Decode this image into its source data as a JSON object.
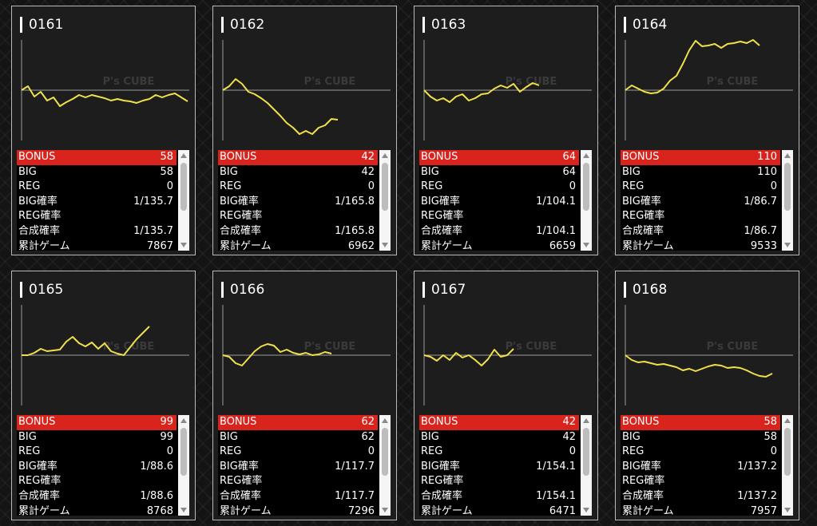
{
  "graph_style": {
    "line_color": "#f0e04a",
    "axis_color": "#9a9a9a",
    "watermark": "P's CUBE"
  },
  "label_keys": [
    "BONUS",
    "BIG",
    "REG",
    "BIG確率",
    "REG確率",
    "合成確率",
    "累計ゲーム"
  ],
  "machines": [
    {
      "number": "0161",
      "stats": {
        "bonus": "58",
        "big": "58",
        "reg": "0",
        "big_rate": "1/135.7",
        "reg_rate": "",
        "total_rate": "1/135.7",
        "games": "7867"
      },
      "graph": [
        0,
        5,
        -8,
        -2,
        -13,
        -9,
        -20,
        -15,
        -11,
        -6,
        -9,
        -6,
        -8,
        -10,
        -13,
        -11,
        -13,
        -14,
        -16,
        -13,
        -11,
        -6,
        -9,
        -6,
        -4,
        -9,
        -14
      ]
    },
    {
      "number": "0162",
      "stats": {
        "bonus": "42",
        "big": "42",
        "reg": "0",
        "big_rate": "1/165.8",
        "reg_rate": "",
        "total_rate": "1/165.8",
        "games": "6962"
      },
      "graph": [
        0,
        5,
        14,
        8,
        -2,
        -5,
        -10,
        -16,
        -24,
        -32,
        -41,
        -47,
        -55,
        -51,
        -55,
        -47,
        -44,
        -36,
        -37
      ]
    },
    {
      "number": "0163",
      "stats": {
        "bonus": "64",
        "big": "64",
        "reg": "0",
        "big_rate": "1/104.1",
        "reg_rate": "",
        "total_rate": "1/104.1",
        "games": "6659"
      },
      "graph": [
        0,
        -8,
        -13,
        -10,
        -15,
        -8,
        -5,
        -13,
        -10,
        -5,
        -4,
        2,
        6,
        3,
        8,
        -2,
        4,
        9,
        6
      ]
    },
    {
      "number": "0164",
      "stats": {
        "bonus": "110",
        "big": "110",
        "reg": "0",
        "big_rate": "1/86.7",
        "reg_rate": "",
        "total_rate": "1/86.7",
        "games": "9533"
      },
      "graph": [
        0,
        6,
        2,
        -2,
        -4,
        -3,
        2,
        12,
        18,
        33,
        50,
        62,
        55,
        56,
        58,
        53,
        58,
        59,
        61,
        59,
        63,
        56
      ]
    },
    {
      "number": "0165",
      "stats": {
        "bonus": "99",
        "big": "99",
        "reg": "0",
        "big_rate": "1/88.6",
        "reg_rate": "",
        "total_rate": "1/88.6",
        "games": "8768"
      },
      "graph": [
        0,
        0,
        3,
        8,
        5,
        6,
        7,
        17,
        23,
        15,
        11,
        16,
        8,
        15,
        5,
        2,
        0,
        10,
        20,
        28,
        36
      ]
    },
    {
      "number": "0166",
      "stats": {
        "bonus": "62",
        "big": "62",
        "reg": "0",
        "big_rate": "1/117.7",
        "reg_rate": "",
        "total_rate": "1/117.7",
        "games": "7296"
      },
      "graph": [
        0,
        -2,
        -10,
        -13,
        -4,
        5,
        11,
        14,
        12,
        4,
        7,
        3,
        1,
        3,
        0,
        1,
        4,
        2
      ]
    },
    {
      "number": "0167",
      "stats": {
        "bonus": "42",
        "big": "42",
        "reg": "0",
        "big_rate": "1/154.1",
        "reg_rate": "",
        "total_rate": "1/154.1",
        "games": "6471"
      },
      "graph": [
        0,
        -2,
        -7,
        0,
        -6,
        3,
        -3,
        0,
        -6,
        -13,
        -5,
        7,
        -2,
        0,
        8
      ]
    },
    {
      "number": "0168",
      "stats": {
        "bonus": "58",
        "big": "58",
        "reg": "0",
        "big_rate": "1/137.2",
        "reg_rate": "",
        "total_rate": "1/137.2",
        "games": "7957"
      },
      "graph": [
        0,
        -6,
        -9,
        -8,
        -10,
        -12,
        -11,
        -13,
        -15,
        -19,
        -17,
        -20,
        -17,
        -14,
        -12,
        -13,
        -16,
        -15,
        -16,
        -19,
        -23,
        -26,
        -27,
        -23
      ]
    }
  ]
}
